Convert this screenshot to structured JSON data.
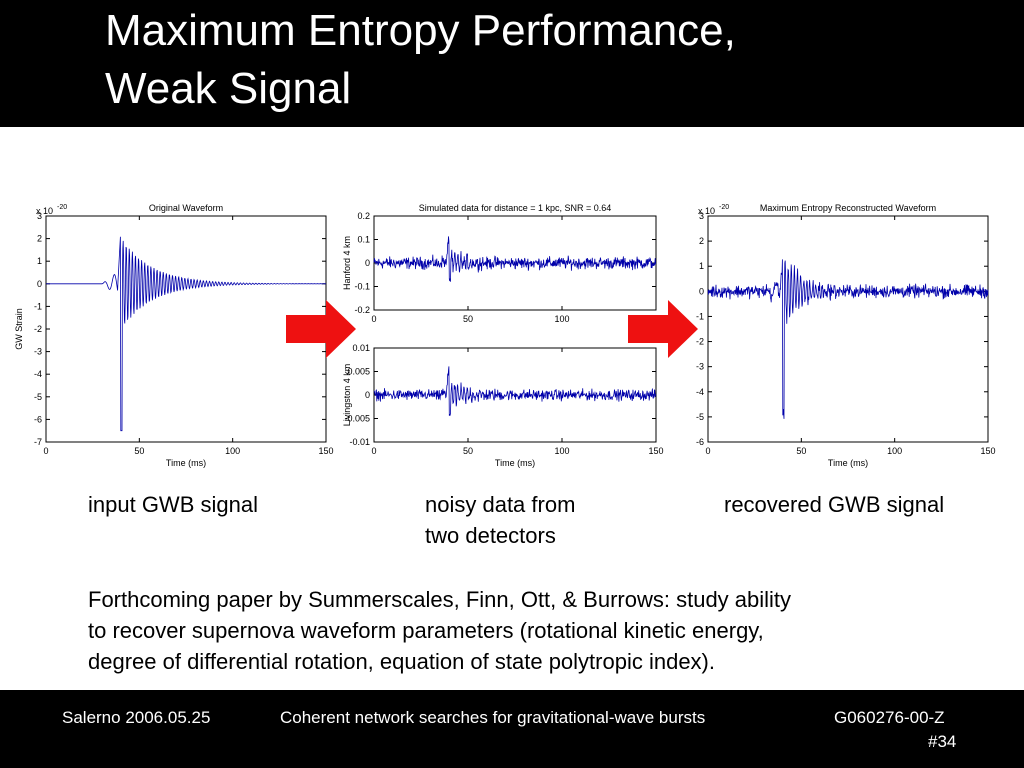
{
  "slide": {
    "title_lines": [
      "Maximum Entropy Performance,",
      "Weak Signal"
    ],
    "captions": {
      "input": [
        "input GWB signal"
      ],
      "noisy": [
        "noisy data from",
        "two detectors"
      ],
      "recovered": [
        "recovered GWB signal"
      ]
    },
    "paragraph_lines": [
      "Forthcoming paper by Summerscales, Finn, Ott, & Burrows:  study ability",
      "to recover supernova waveform parameters (rotational kinetic energy,",
      "degree of differential rotation, equation of state polytropic index)."
    ],
    "footer": {
      "left": "Salerno 2006.05.25",
      "center": "Coherent network searches for gravitational-wave bursts",
      "right": "G060276-00-Z",
      "page": "#34"
    },
    "colors": {
      "background_bands": "#000000",
      "arrow": "#ee1111",
      "trace": "#0000aa"
    }
  },
  "chart_data": [
    {
      "type": "line",
      "title": "Original Waveform",
      "xlabel": "Time (ms)",
      "ylabel": "GW Strain",
      "y_multiplier_label": "x 10",
      "y_multiplier_exp": "-20",
      "xlim": [
        0,
        150
      ],
      "ylim": [
        -7,
        3
      ],
      "xticks": [
        "0",
        "50",
        "100",
        "150"
      ],
      "yticks": [
        "3",
        "2",
        "1",
        "0",
        "-1",
        "-2",
        "-3",
        "-4",
        "-5",
        "-6",
        "-7"
      ],
      "signal": {
        "zero_until_ms": 33,
        "spike_ms": 40.5,
        "spike_min": -6.5,
        "spike_max": 2.3,
        "decay_until_ms": 90,
        "noise": 0
      },
      "series": [
        {
          "color": "#0000aa"
        }
      ]
    },
    {
      "type": "line",
      "title": "Simulated data for distance = 1 kpc, SNR = 0.64",
      "xlabel": "",
      "ylabel": "Hanford 4 km",
      "xlim": [
        0,
        150
      ],
      "ylim": [
        -0.2,
        0.2
      ],
      "xticks": [
        "0",
        "50",
        "100"
      ],
      "yticks": [
        "0.2",
        "0.1",
        "0",
        "-0.1",
        "-0.2"
      ],
      "signal": {
        "spike_ms": 40,
        "spike_min": -0.07,
        "spike_max": 0.13,
        "noise": 0.018
      },
      "series": [
        {
          "color": "#0000aa"
        }
      ]
    },
    {
      "type": "line",
      "title": "",
      "xlabel": "Time (ms)",
      "ylabel": "Livingston 4 km",
      "xlim": [
        0,
        150
      ],
      "ylim": [
        -0.01,
        0.01
      ],
      "xticks": [
        "0",
        "50",
        "100",
        "150"
      ],
      "yticks": [
        "0.01",
        "0.005",
        "0",
        "-0.005",
        "-0.01"
      ],
      "signal": {
        "spike_ms": 41,
        "spike_min": -0.004,
        "spike_max": 0.007,
        "noise": 0.0008
      },
      "series": [
        {
          "color": "#0000aa"
        }
      ]
    },
    {
      "type": "line",
      "title": "Maximum Entropy Reconstructed Waveform",
      "xlabel": "Time (ms)",
      "ylabel": "",
      "y_multiplier_label": "x 10",
      "y_multiplier_exp": "-20",
      "xlim": [
        0,
        150
      ],
      "ylim": [
        -6,
        3
      ],
      "xticks": [
        "0",
        "50",
        "100",
        "150"
      ],
      "yticks": [
        "3",
        "2",
        "1",
        "0",
        "-1",
        "-2",
        "-3",
        "-4",
        "-5",
        "-6"
      ],
      "signal": {
        "spike_ms": 40,
        "spike_min": -5,
        "spike_max": 1.2,
        "decay_until_ms": 70,
        "noise": 0.18
      },
      "series": [
        {
          "color": "#0000aa"
        }
      ]
    }
  ]
}
